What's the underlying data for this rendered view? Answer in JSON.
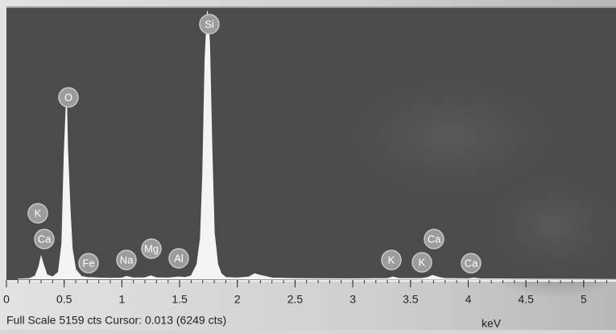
{
  "chart_data": {
    "type": "spectrum",
    "color": "#f4f4f4",
    "x": [
      0.1,
      0.2,
      0.25,
      0.28,
      0.3,
      0.32,
      0.35,
      0.4,
      0.45,
      0.48,
      0.5,
      0.52,
      0.53,
      0.55,
      0.57,
      0.6,
      0.65,
      0.7,
      0.8,
      0.9,
      1.0,
      1.04,
      1.1,
      1.2,
      1.25,
      1.3,
      1.4,
      1.49,
      1.55,
      1.6,
      1.65,
      1.68,
      1.7,
      1.72,
      1.74,
      1.76,
      1.78,
      1.8,
      1.83,
      1.86,
      1.9,
      2.0,
      2.1,
      2.15,
      2.2,
      2.3,
      2.5,
      3.0,
      3.3,
      3.35,
      3.4,
      3.6,
      3.65,
      3.69,
      3.75,
      3.8,
      4.0,
      4.05,
      4.1,
      4.5,
      5.0,
      5.28
    ],
    "values": [
      20,
      30,
      80,
      250,
      450,
      300,
      100,
      60,
      150,
      700,
      2400,
      3480,
      2500,
      1400,
      600,
      200,
      70,
      50,
      40,
      35,
      40,
      70,
      40,
      45,
      80,
      45,
      40,
      60,
      50,
      80,
      300,
      800,
      2000,
      4200,
      5100,
      4500,
      2500,
      900,
      300,
      120,
      50,
      40,
      60,
      120,
      90,
      40,
      30,
      25,
      30,
      60,
      30,
      30,
      50,
      90,
      50,
      30,
      25,
      40,
      25,
      20,
      15,
      10
    ],
    "xlim": [
      0,
      5.28
    ],
    "ylim": [
      0,
      5159
    ],
    "xticks": [
      0,
      0.5,
      1,
      1.5,
      2,
      2.5,
      3,
      3.5,
      4,
      4.5,
      5
    ],
    "x_label": "keV",
    "status": "Full Scale 5159 cts Cursor: 0.013  (6249 cts)",
    "peak_labels": [
      "K",
      "Ca",
      "O",
      "Fe",
      "Na",
      "Mg",
      "Al",
      "Si",
      "K",
      "K",
      "Ca",
      "Ca"
    ]
  }
}
